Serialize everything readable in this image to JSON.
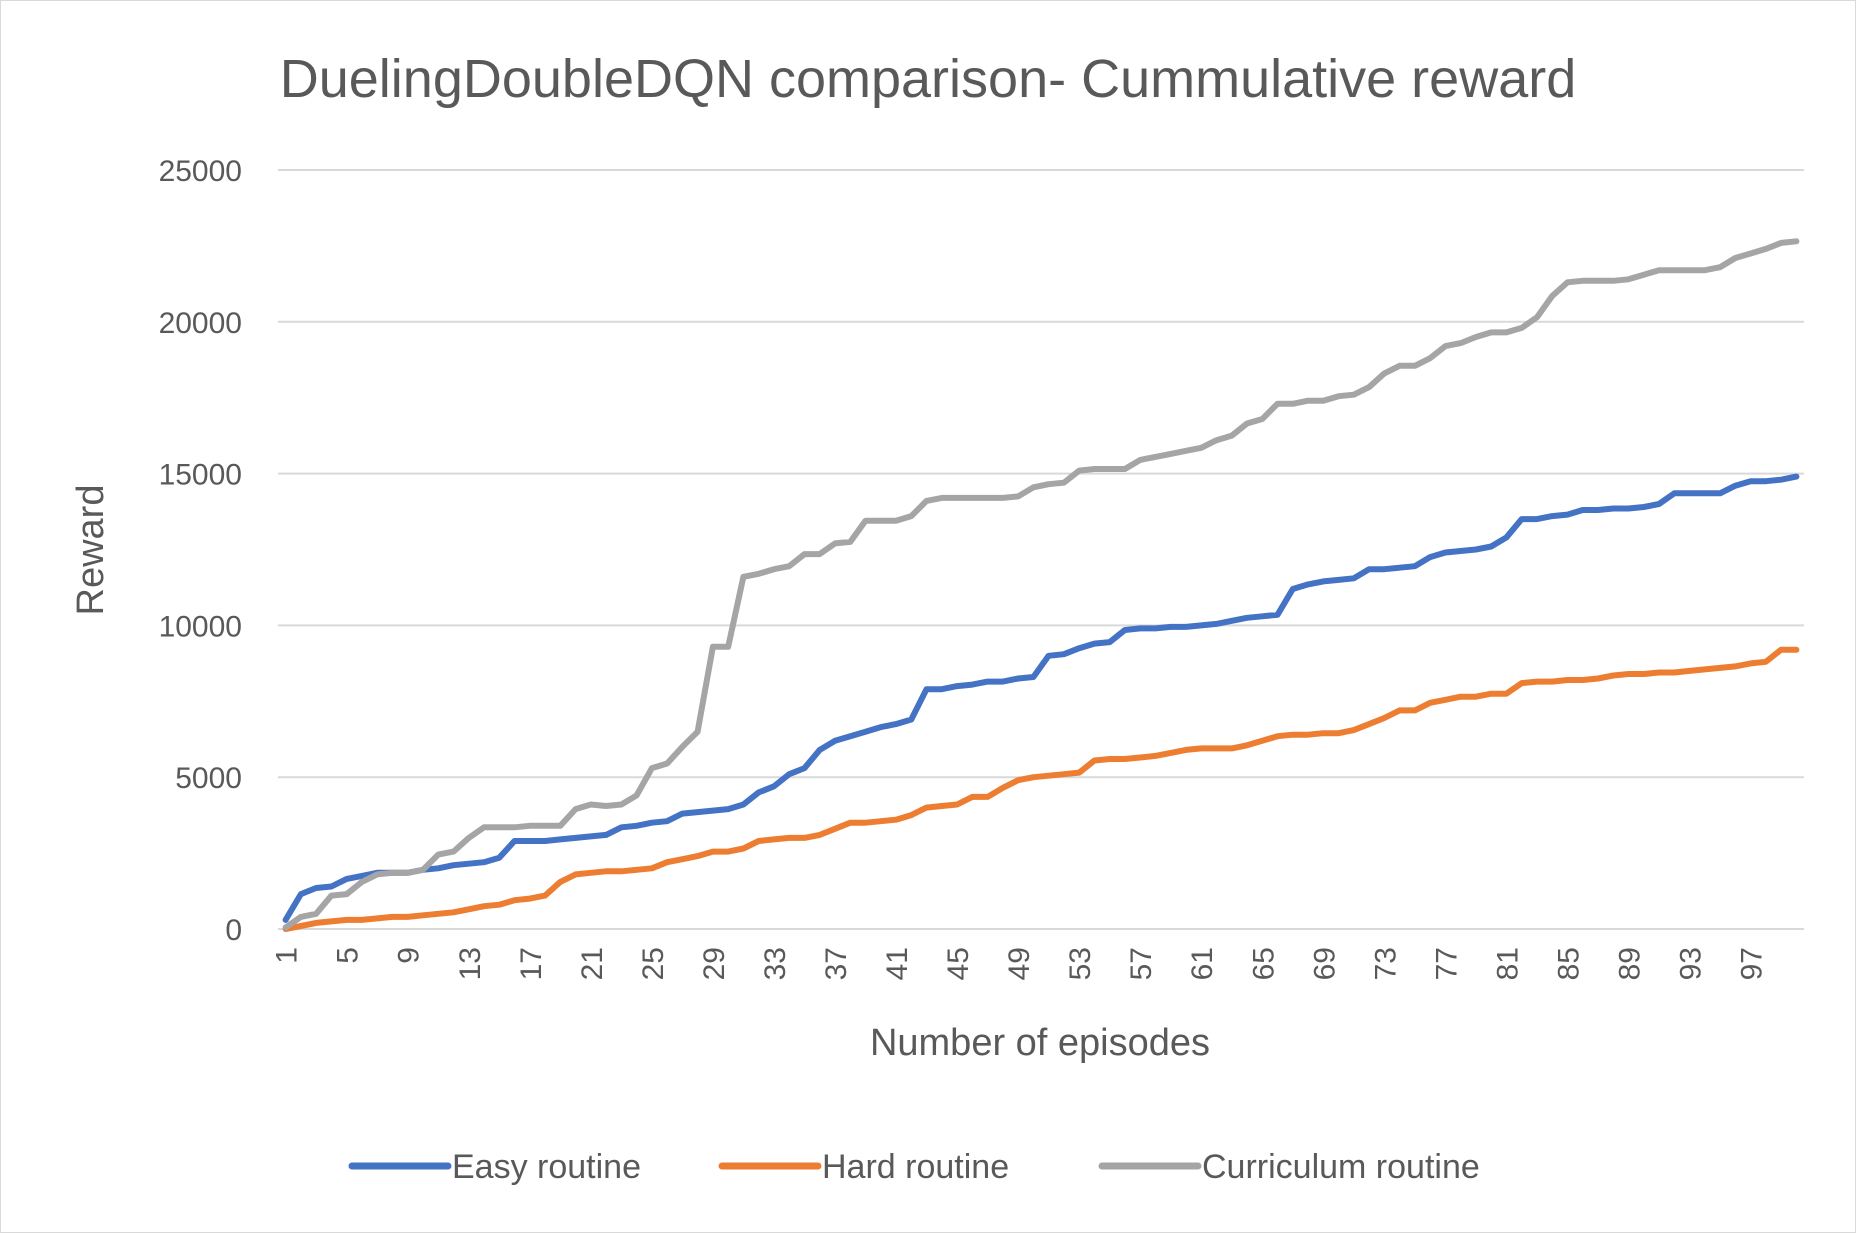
{
  "chart_data": {
    "type": "line",
    "title": "DuelingDoubleDQN comparison- Cummulative reward",
    "xlabel": "Number of episodes",
    "ylabel": "Reward",
    "ylim": [
      0,
      25000
    ],
    "yticks": [
      0,
      5000,
      10000,
      15000,
      20000,
      25000
    ],
    "xlim": [
      1,
      100
    ],
    "xticks": [
      1,
      5,
      9,
      13,
      17,
      21,
      25,
      29,
      33,
      37,
      41,
      45,
      49,
      53,
      57,
      61,
      65,
      69,
      73,
      77,
      81,
      85,
      89,
      93,
      97
    ],
    "grid": "horizontal",
    "legend": "bottom",
    "series": [
      {
        "name": "Easy routine",
        "color": "#4472c4",
        "values": [
          300,
          1150,
          1350,
          1400,
          1650,
          1750,
          1850,
          1850,
          1850,
          1950,
          2000,
          2100,
          2150,
          2200,
          2350,
          2900,
          2900,
          2900,
          2950,
          3000,
          3050,
          3100,
          3350,
          3400,
          3500,
          3550,
          3800,
          3850,
          3900,
          3950,
          4100,
          4500,
          4700,
          5100,
          5300,
          5900,
          6200,
          6350,
          6500,
          6650,
          6750,
          6900,
          7900,
          7900,
          8000,
          8050,
          8150,
          8150,
          8250,
          8300,
          9000,
          9050,
          9250,
          9400,
          9450,
          9850,
          9900,
          9900,
          9950,
          9950,
          10000,
          10050,
          10150,
          10250,
          10300,
          10350,
          11200,
          11350,
          11450,
          11500,
          11550,
          11850,
          11850,
          11900,
          11950,
          12250,
          12400,
          12450,
          12500,
          12600,
          12900,
          13500,
          13500,
          13600,
          13650,
          13800,
          13800,
          13850,
          13850,
          13900,
          14000,
          14350,
          14350,
          14350,
          14350,
          14600,
          14750,
          14750,
          14800,
          14900
        ]
      },
      {
        "name": "Hard routine",
        "color": "#ed7d31",
        "values": [
          0,
          100,
          200,
          250,
          300,
          300,
          350,
          400,
          400,
          450,
          500,
          550,
          650,
          750,
          800,
          950,
          1000,
          1100,
          1550,
          1800,
          1850,
          1900,
          1900,
          1950,
          2000,
          2200,
          2300,
          2400,
          2550,
          2550,
          2650,
          2900,
          2950,
          3000,
          3000,
          3100,
          3300,
          3500,
          3500,
          3550,
          3600,
          3750,
          4000,
          4050,
          4100,
          4350,
          4350,
          4650,
          4900,
          5000,
          5050,
          5100,
          5150,
          5550,
          5600,
          5600,
          5650,
          5700,
          5800,
          5900,
          5950,
          5950,
          5950,
          6050,
          6200,
          6350,
          6400,
          6400,
          6450,
          6450,
          6550,
          6750,
          6950,
          7200,
          7200,
          7450,
          7550,
          7650,
          7650,
          7750,
          7750,
          8100,
          8150,
          8150,
          8200,
          8200,
          8250,
          8350,
          8400,
          8400,
          8450,
          8450,
          8500,
          8550,
          8600,
          8650,
          8750,
          8800,
          9200,
          9200
        ]
      },
      {
        "name": "Curriculum routine",
        "color": "#a5a5a5",
        "values": [
          50,
          400,
          500,
          1100,
          1150,
          1550,
          1800,
          1850,
          1850,
          1950,
          2450,
          2550,
          3000,
          3350,
          3350,
          3350,
          3400,
          3400,
          3400,
          3950,
          4100,
          4050,
          4100,
          4400,
          5300,
          5450,
          6000,
          6500,
          9300,
          9300,
          11600,
          11700,
          11850,
          11950,
          12350,
          12350,
          12700,
          12750,
          13450,
          13450,
          13450,
          13600,
          14100,
          14200,
          14200,
          14200,
          14200,
          14200,
          14250,
          14550,
          14650,
          14700,
          15100,
          15150,
          15150,
          15150,
          15450,
          15550,
          15650,
          15750,
          15850,
          16100,
          16250,
          16650,
          16800,
          17300,
          17300,
          17400,
          17400,
          17550,
          17600,
          17850,
          18300,
          18550,
          18550,
          18800,
          19200,
          19300,
          19500,
          19650,
          19650,
          19800,
          20150,
          20850,
          21300,
          21350,
          21350,
          21350,
          21400,
          21550,
          21700,
          21700,
          21700,
          21700,
          21800,
          22100,
          22250,
          22400,
          22600,
          22650
        ]
      }
    ]
  }
}
